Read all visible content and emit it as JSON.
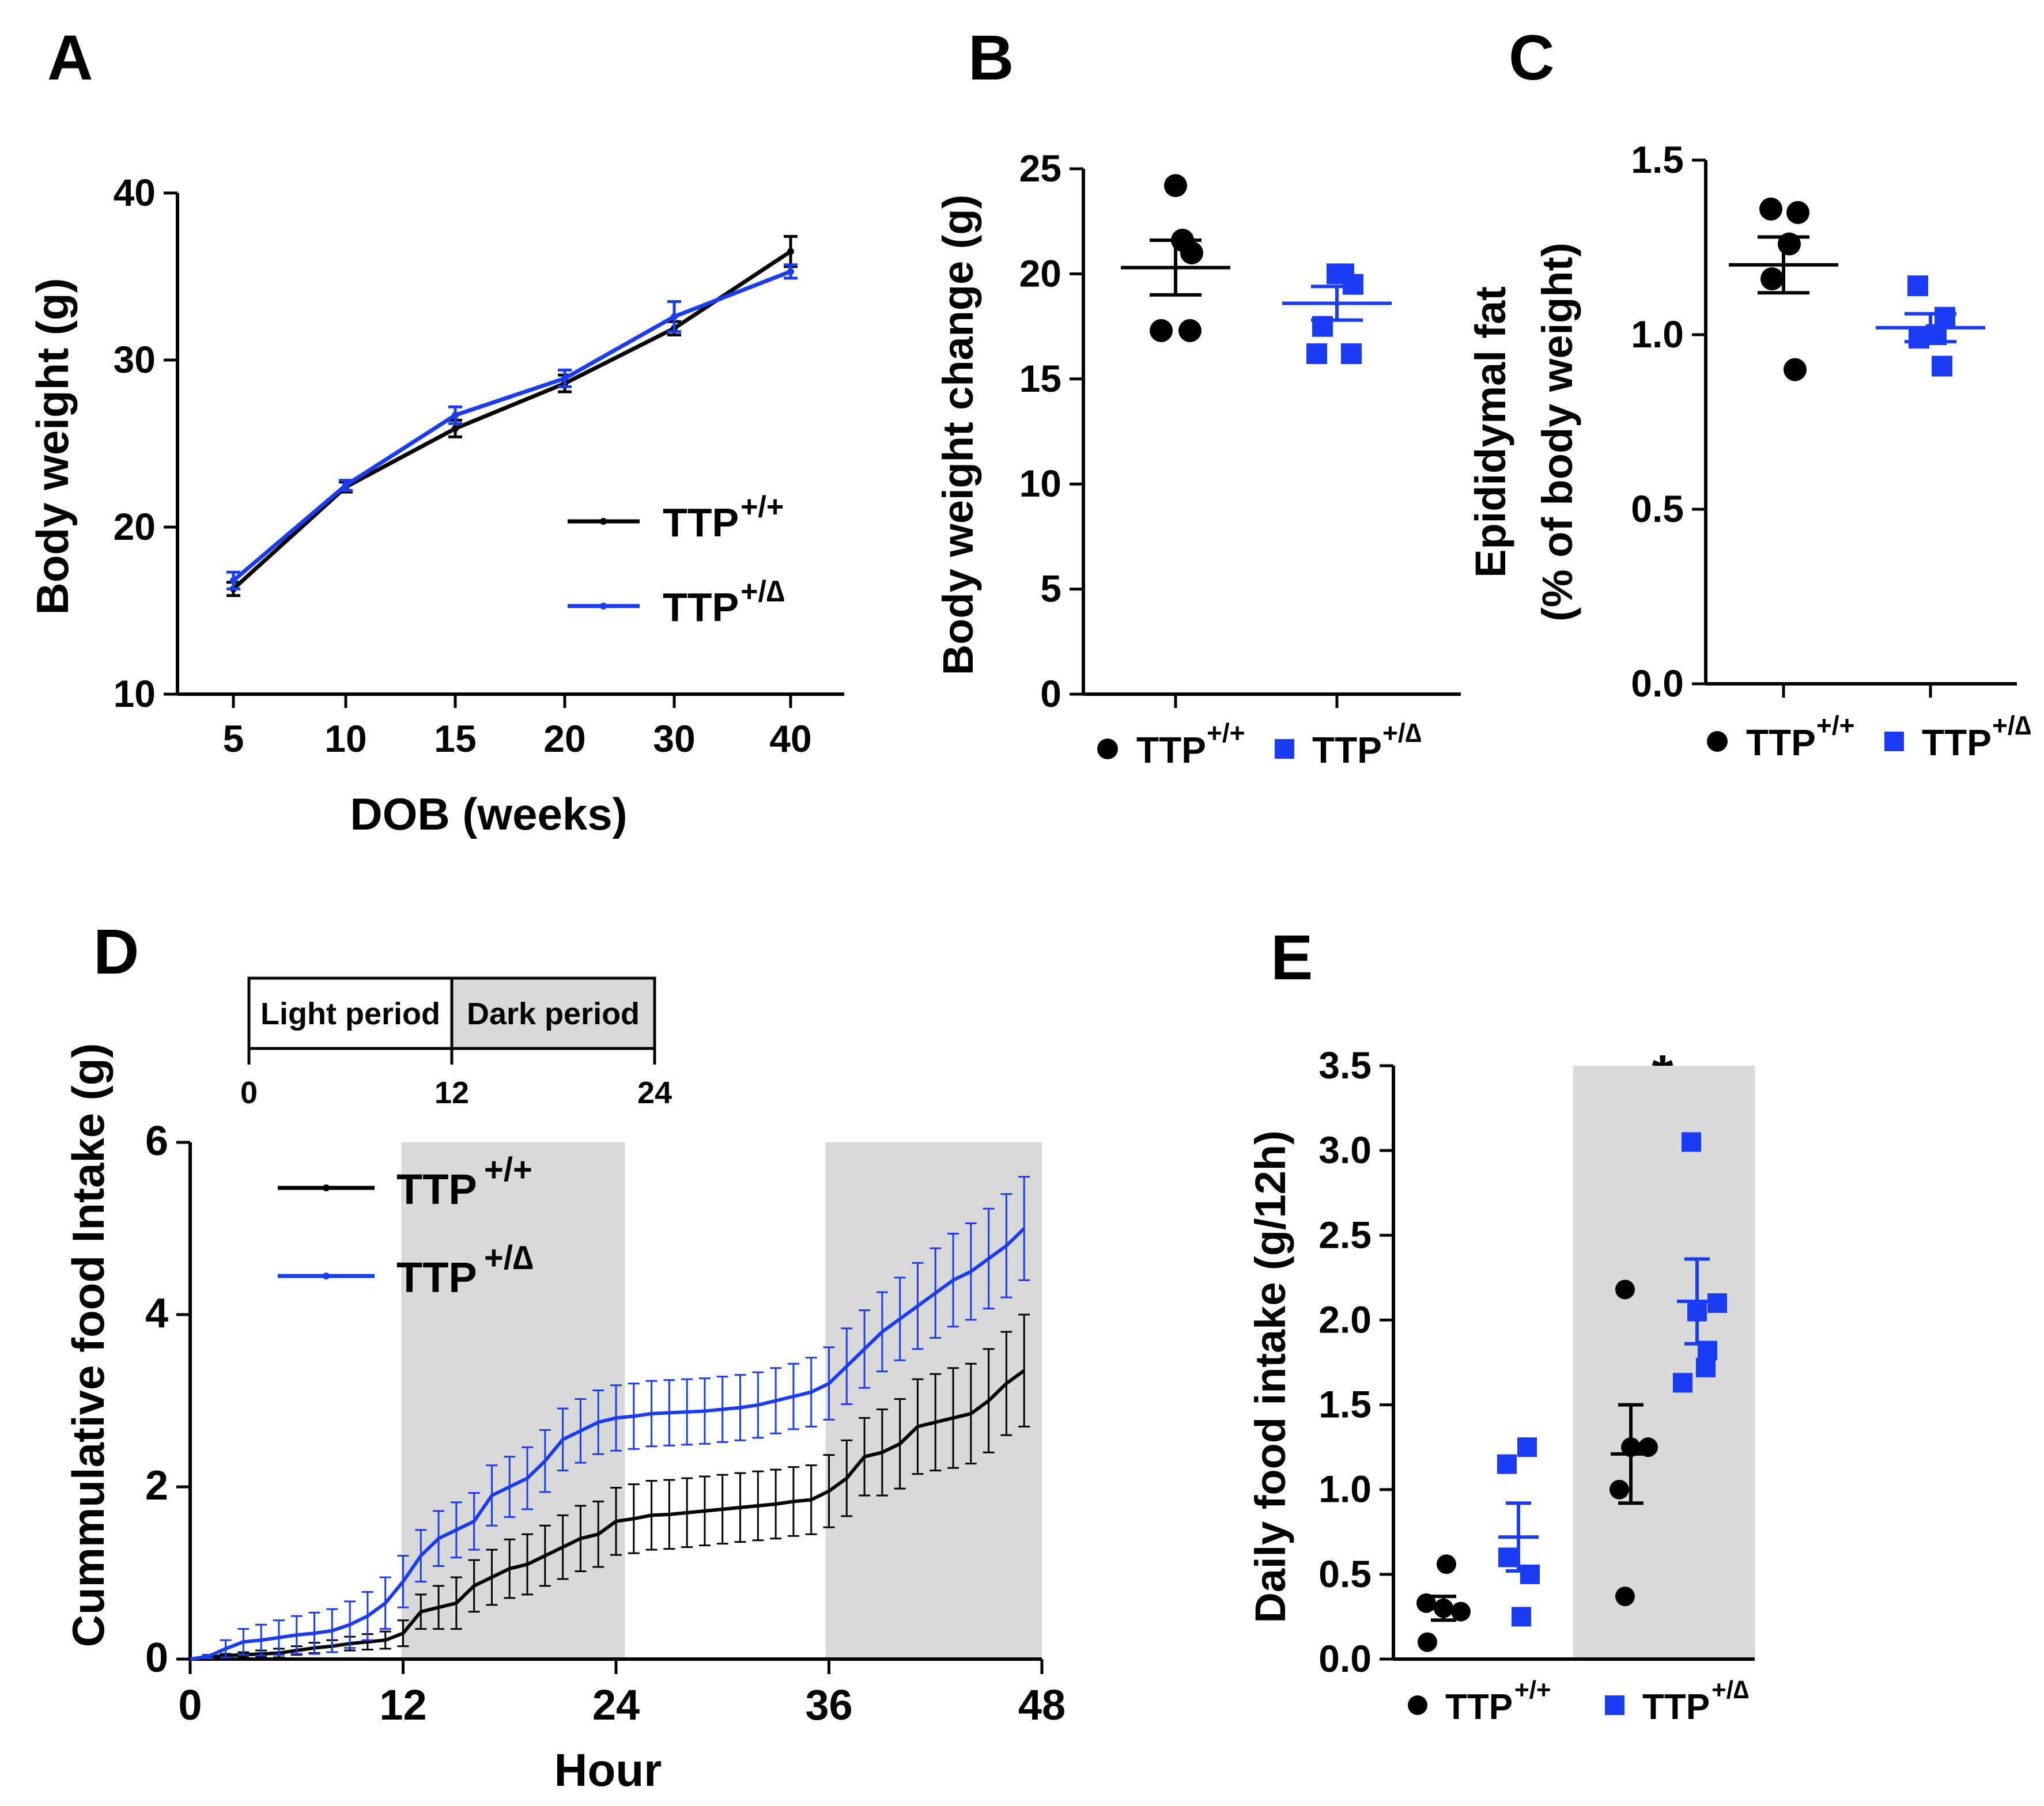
{
  "colors": {
    "wt": "#000000",
    "mut": "#1a3cf2",
    "shade": "#d9d9d9"
  },
  "legend": {
    "wt_label": "TTP",
    "wt_sup": "+/+",
    "mut_label": "TTP",
    "mut_sup": "+/∆"
  },
  "chart_data": [
    {
      "panel": "A",
      "type": "line",
      "xlabel": "DOB (weeks)",
      "ylabel": "Body weight (g)",
      "ylim": [
        10,
        40
      ],
      "yticks": [
        10,
        20,
        30,
        40
      ],
      "categories": [
        "5",
        "10",
        "15",
        "20",
        "30",
        "40"
      ],
      "series": [
        {
          "name": "TTP+/+",
          "values": [
            16.3,
            22.4,
            25.9,
            28.6,
            31.9,
            36.5
          ],
          "errors": [
            0.4,
            0.3,
            0.5,
            0.5,
            0.4,
            0.9
          ]
        },
        {
          "name": "TTP+/∆",
          "values": [
            16.8,
            22.5,
            26.7,
            28.9,
            32.6,
            35.3
          ],
          "errors": [
            0.5,
            0.3,
            0.5,
            0.5,
            0.9,
            0.4
          ]
        }
      ]
    },
    {
      "panel": "B",
      "type": "scatter",
      "ylabel": "Body weight change (g)",
      "ylim": [
        0,
        25
      ],
      "yticks": [
        0,
        5,
        10,
        15,
        20,
        25
      ],
      "groups": [
        {
          "name": "TTP+/+",
          "points": [
            24.2,
            21.6,
            21.0,
            17.3,
            17.3
          ],
          "mean": 20.3,
          "sem": 1.3
        },
        {
          "name": "TTP+/∆",
          "points": [
            20.0,
            20.0,
            19.5,
            17.5,
            16.2,
            16.2
          ],
          "mean": 18.6,
          "sem": 0.8
        }
      ]
    },
    {
      "panel": "C",
      "type": "scatter",
      "ylabel": "Epididymal fat",
      "ylabel2": "(% of body weight)",
      "ylim": [
        0,
        1.5
      ],
      "yticks": [
        "0.0",
        "0.5",
        "1.0",
        "1.5"
      ],
      "groups": [
        {
          "name": "TTP+/+",
          "points": [
            1.36,
            1.35,
            1.26,
            1.16,
            0.9
          ],
          "mean": 1.2,
          "sem": 0.08
        },
        {
          "name": "TTP+/∆",
          "points": [
            1.14,
            1.05,
            1.0,
            0.99,
            0.91
          ],
          "mean": 1.02,
          "sem": 0.04
        }
      ]
    },
    {
      "panel": "D",
      "type": "line",
      "xlabel": "Hour",
      "ylabel": "Cummulative food Intake (g)",
      "xlim": [
        0,
        48
      ],
      "ylim": [
        0,
        6
      ],
      "xticks": [
        0,
        12,
        24,
        36,
        48
      ],
      "yticks": [
        0,
        2,
        4,
        6
      ],
      "shaded": [
        [
          11.9,
          24.5
        ],
        [
          35.8,
          48
        ]
      ],
      "period_bar": {
        "light": "Light period",
        "dark": "Dark period",
        "ticks": [
          "0",
          "12",
          "24"
        ]
      },
      "x": [
        0,
        1,
        2,
        3,
        4,
        5,
        6,
        7,
        8,
        9,
        10,
        11,
        12,
        13,
        14,
        15,
        16,
        17,
        18,
        19,
        20,
        21,
        22,
        23,
        24,
        25,
        26,
        27,
        28,
        29,
        30,
        31,
        32,
        33,
        34,
        35,
        36,
        37,
        38,
        39,
        40,
        41,
        42,
        43,
        44,
        45,
        46,
        47
      ],
      "series": [
        {
          "name": "TTP+/+",
          "values": [
            0,
            0.02,
            0.04,
            0.05,
            0.06,
            0.07,
            0.1,
            0.13,
            0.15,
            0.18,
            0.2,
            0.22,
            0.3,
            0.55,
            0.6,
            0.65,
            0.85,
            0.95,
            1.05,
            1.1,
            1.2,
            1.3,
            1.4,
            1.45,
            1.6,
            1.63,
            1.67,
            1.68,
            1.7,
            1.72,
            1.74,
            1.76,
            1.78,
            1.8,
            1.83,
            1.85,
            1.95,
            2.1,
            2.35,
            2.4,
            2.5,
            2.7,
            2.75,
            2.8,
            2.85,
            3.0,
            3.2,
            3.35
          ],
          "errors": [
            0,
            0.02,
            0.02,
            0.03,
            0.04,
            0.05,
            0.05,
            0.06,
            0.07,
            0.08,
            0.09,
            0.1,
            0.15,
            0.2,
            0.25,
            0.3,
            0.3,
            0.32,
            0.34,
            0.35,
            0.35,
            0.37,
            0.38,
            0.38,
            0.39,
            0.4,
            0.4,
            0.4,
            0.4,
            0.4,
            0.4,
            0.4,
            0.4,
            0.4,
            0.4,
            0.4,
            0.42,
            0.44,
            0.45,
            0.5,
            0.52,
            0.55,
            0.56,
            0.58,
            0.58,
            0.6,
            0.6,
            0.65
          ]
        },
        {
          "name": "TTP+/∆",
          "values": [
            0,
            0.03,
            0.12,
            0.2,
            0.22,
            0.25,
            0.28,
            0.3,
            0.33,
            0.4,
            0.5,
            0.65,
            0.9,
            1.2,
            1.4,
            1.5,
            1.6,
            1.9,
            2.0,
            2.1,
            2.3,
            2.55,
            2.65,
            2.75,
            2.8,
            2.82,
            2.85,
            2.86,
            2.87,
            2.88,
            2.9,
            2.92,
            2.95,
            3.0,
            3.05,
            3.1,
            3.2,
            3.4,
            3.6,
            3.8,
            3.95,
            4.1,
            4.25,
            4.4,
            4.5,
            4.65,
            4.8,
            5.0
          ],
          "errors": [
            0,
            0.02,
            0.1,
            0.15,
            0.18,
            0.2,
            0.22,
            0.24,
            0.25,
            0.27,
            0.28,
            0.3,
            0.3,
            0.3,
            0.32,
            0.32,
            0.33,
            0.35,
            0.35,
            0.36,
            0.36,
            0.36,
            0.37,
            0.37,
            0.38,
            0.38,
            0.38,
            0.38,
            0.38,
            0.38,
            0.38,
            0.38,
            0.38,
            0.38,
            0.38,
            0.4,
            0.42,
            0.44,
            0.45,
            0.46,
            0.48,
            0.5,
            0.52,
            0.54,
            0.56,
            0.58,
            0.6,
            0.6
          ]
        }
      ]
    },
    {
      "panel": "E",
      "type": "scatter",
      "ylabel": "Daily food intake (g/12h)",
      "ylim": [
        0,
        3.5
      ],
      "yticks": [
        "0.0",
        "0.5",
        "1.0",
        "1.5",
        "2.0",
        "2.5",
        "3.0",
        "3.5"
      ],
      "significance": "*",
      "groups": [
        {
          "name": "TTP+/+ light",
          "series": "TTP+/+",
          "points": [
            0.56,
            0.33,
            0.3,
            0.28,
            0.1
          ],
          "mean": 0.3,
          "sem": 0.07
        },
        {
          "name": "TTP+/∆ light",
          "series": "TTP+/∆",
          "points": [
            1.25,
            1.15,
            0.6,
            0.5,
            0.25
          ],
          "mean": 0.72,
          "sem": 0.2
        },
        {
          "name": "TTP+/+ dark",
          "series": "TTP+/+",
          "points": [
            2.18,
            1.25,
            1.25,
            1.0,
            0.37
          ],
          "mean": 1.21,
          "sem": 0.29
        },
        {
          "name": "TTP+/∆ dark",
          "series": "TTP+/∆",
          "points": [
            3.05,
            2.1,
            2.05,
            1.82,
            1.72,
            1.63
          ],
          "mean": 2.11,
          "sem": 0.25
        }
      ]
    }
  ]
}
